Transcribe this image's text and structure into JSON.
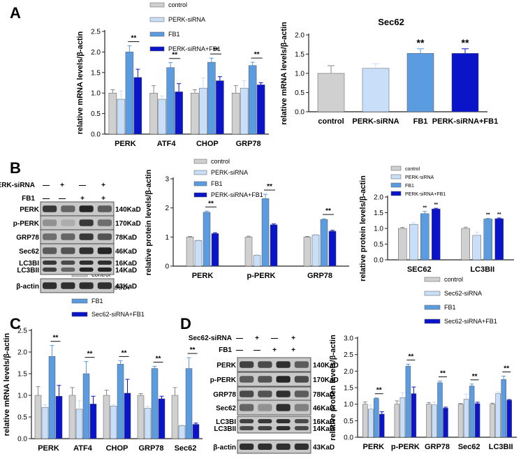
{
  "panel_labels": [
    "A",
    "B",
    "C",
    "D"
  ],
  "colors": {
    "control": "#d0d0d0",
    "siRNA": "#c9def8",
    "FB1": "#5b9be0",
    "combo": "#0a14c8",
    "axis": "#222222",
    "blot_dark": "#1a1a1a",
    "blot_bg": "#c8c8c8"
  },
  "chart_data": [
    {
      "id": "A1",
      "type": "bar",
      "ylabel": "relative mRNA levels/β-actin",
      "ylim": [
        0,
        2.5
      ],
      "ticks": [
        0.0,
        0.5,
        1.0,
        1.5,
        2.0,
        2.5
      ],
      "categories": [
        "PERK",
        "ATF4",
        "CHOP",
        "GRP78"
      ],
      "legend": [
        "control",
        "PERK-siRNA",
        "FB1",
        "PERK-siRNA+FB1"
      ],
      "series": [
        {
          "name": "control",
          "values": [
            1.0,
            1.0,
            1.0,
            1.0
          ],
          "err": [
            0.08,
            0.18,
            0.08,
            0.18
          ]
        },
        {
          "name": "PERK-siRNA",
          "values": [
            0.85,
            0.85,
            1.12,
            1.12
          ],
          "err": [
            0.2,
            0.08,
            0.25,
            0.18
          ]
        },
        {
          "name": "FB1",
          "values": [
            2.0,
            1.62,
            1.75,
            1.67
          ],
          "err": [
            0.15,
            0.12,
            0.1,
            0.08
          ]
        },
        {
          "name": "PERK-siRNA+FB1",
          "values": [
            1.38,
            1.03,
            1.3,
            1.2
          ],
          "err": [
            0.2,
            0.2,
            0.1,
            0.05
          ]
        }
      ],
      "sig": [
        {
          "cat": 0,
          "label": "**"
        },
        {
          "cat": 1,
          "label": "**"
        },
        {
          "cat": 2,
          "label": "**"
        },
        {
          "cat": 3,
          "label": "**"
        }
      ]
    },
    {
      "id": "A2",
      "type": "bar",
      "title": "Sec62",
      "ylabel": "relative mRNA levels/β-actin",
      "ylim": [
        0,
        2.0
      ],
      "ticks": [
        0.0,
        0.5,
        1.0,
        1.5,
        2.0
      ],
      "categories": [
        "control",
        "PERK-siRNA",
        "FB1",
        "PERK-siRNA+FB1"
      ],
      "values": [
        1.0,
        1.13,
        1.52,
        1.52
      ],
      "err": [
        0.2,
        0.12,
        0.12,
        0.12
      ],
      "sig": [
        "",
        "",
        "**",
        "**"
      ]
    },
    {
      "id": "B1",
      "type": "bar",
      "ylabel": "relative protein levels/β-actin",
      "ylim": [
        0,
        3
      ],
      "ticks": [
        0,
        1,
        2,
        3
      ],
      "categories": [
        "PERK",
        "p-PERK",
        "GRP78"
      ],
      "legend": [
        "control",
        "PERK-siRNA",
        "FB1",
        "PERK-siRNA+FB1"
      ],
      "series": [
        {
          "name": "control",
          "values": [
            1.0,
            1.0,
            1.0
          ],
          "err": [
            0.02,
            0.03,
            0.02
          ]
        },
        {
          "name": "PERK-siRNA",
          "values": [
            0.88,
            0.37,
            1.07
          ],
          "err": [
            0.02,
            0.03,
            0.02
          ]
        },
        {
          "name": "FB1",
          "values": [
            1.85,
            2.32,
            1.6
          ],
          "err": [
            0.04,
            0.15,
            0.03
          ]
        },
        {
          "name": "PERK-siRNA+FB1",
          "values": [
            1.12,
            1.42,
            1.2
          ],
          "err": [
            0.03,
            0.03,
            0.03
          ]
        }
      ],
      "sig": [
        {
          "cat": 0,
          "label": "**"
        },
        {
          "cat": 1,
          "label": "**"
        },
        {
          "cat": 2,
          "label": "**"
        }
      ]
    },
    {
      "id": "B2",
      "type": "bar",
      "ylabel": "relative protein levels/β-actin",
      "ylim": [
        0,
        2.0
      ],
      "ticks": [
        0.0,
        0.5,
        1.0,
        1.5,
        2.0
      ],
      "categories": [
        "SEC62",
        "LC3BII"
      ],
      "legend": [
        "control",
        "PERK-siRNA",
        "FB1",
        "PERK-siRNA+FB1"
      ],
      "series": [
        {
          "name": "control",
          "values": [
            1.0,
            1.0
          ],
          "err": [
            0.03,
            0.04
          ]
        },
        {
          "name": "PERK-siRNA",
          "values": [
            1.13,
            0.78
          ],
          "err": [
            0.05,
            0.1
          ]
        },
        {
          "name": "FB1",
          "values": [
            1.47,
            1.3
          ],
          "err": [
            0.07,
            0.02
          ]
        },
        {
          "name": "PERK-siRNA+FB1",
          "values": [
            1.62,
            1.31
          ],
          "err": [
            0.02,
            0.02
          ]
        }
      ],
      "sig_over": [
        {
          "cat": 0,
          "series": 2,
          "label": "**"
        },
        {
          "cat": 0,
          "series": 3,
          "label": "**"
        },
        {
          "cat": 1,
          "series": 2,
          "label": "**"
        },
        {
          "cat": 1,
          "series": 3,
          "label": "**"
        }
      ]
    },
    {
      "id": "C1",
      "type": "bar",
      "ylabel": "relative mRNA levels/β-actin",
      "ylim": [
        0,
        2.5
      ],
      "ticks": [
        0.0,
        0.5,
        1.0,
        1.5,
        2.0,
        2.5
      ],
      "categories": [
        "PERK",
        "ATF4",
        "CHOP",
        "GRP78",
        "Sec62"
      ],
      "legend": [
        "control",
        "Sec62-siRNA",
        "FB1",
        "Sec62-siRNA+FB1"
      ],
      "series": [
        {
          "name": "control",
          "values": [
            1.0,
            1.0,
            1.0,
            1.0,
            1.0
          ],
          "err": [
            0.2,
            0.18,
            0.12,
            0.04,
            0.18
          ]
        },
        {
          "name": "Sec62-siRNA",
          "values": [
            0.72,
            0.68,
            0.75,
            0.7,
            0.3
          ],
          "err": [
            0.06,
            0.2,
            0.03,
            0.05,
            0.02
          ]
        },
        {
          "name": "FB1",
          "values": [
            1.9,
            1.5,
            1.72,
            1.62,
            1.62
          ],
          "err": [
            0.25,
            0.28,
            0.08,
            0.05,
            0.25
          ]
        },
        {
          "name": "Sec62-siRNA+FB1",
          "values": [
            0.98,
            0.8,
            1.05,
            0.92,
            0.33
          ],
          "err": [
            0.25,
            0.18,
            0.32,
            0.06,
            0.03
          ]
        }
      ],
      "sig": [
        {
          "cat": 0,
          "label": "**"
        },
        {
          "cat": 1,
          "label": "**"
        },
        {
          "cat": 2,
          "label": "**"
        },
        {
          "cat": 3,
          "label": "**"
        },
        {
          "cat": 4,
          "label": "**"
        }
      ]
    },
    {
      "id": "D1",
      "type": "bar",
      "ylabel": "relative protien levels/β-actin",
      "ylim": [
        0,
        3.0
      ],
      "ticks": [
        0.0,
        0.5,
        1.0,
        1.5,
        2.0,
        2.5,
        3.0
      ],
      "categories": [
        "PERK",
        "p-PERK",
        "GRP78",
        "Sec62",
        "LC3BII"
      ],
      "legend": [
        "control",
        "Sec62-siRNA",
        "FB1",
        "Sec62-siRNA+FB1"
      ],
      "series": [
        {
          "name": "control",
          "values": [
            1.0,
            1.0,
            1.0,
            1.0,
            1.0
          ],
          "err": [
            0.07,
            0.1,
            0.05,
            0.02,
            0.03
          ]
        },
        {
          "name": "Sec62-siRNA",
          "values": [
            0.85,
            1.2,
            0.98,
            1.15,
            1.32
          ],
          "err": [
            0.12,
            0.15,
            0.08,
            0.15,
            0.05
          ]
        },
        {
          "name": "FB1",
          "values": [
            1.17,
            2.15,
            1.65,
            1.55,
            1.75
          ],
          "err": [
            0.02,
            0.06,
            0.05,
            0.06,
            0.1
          ]
        },
        {
          "name": "Sec62-siRNA+FB1",
          "values": [
            0.7,
            1.32,
            0.88,
            1.02,
            1.12
          ],
          "err": [
            0.07,
            0.2,
            0.03,
            0.04,
            0.02
          ]
        }
      ],
      "sig": [
        {
          "cat": 0,
          "label": "**"
        },
        {
          "cat": 1,
          "label": "**"
        },
        {
          "cat": 2,
          "label": "**"
        },
        {
          "cat": 3,
          "label": "**"
        },
        {
          "cat": 4,
          "label": "**"
        }
      ]
    }
  ],
  "blots": [
    {
      "id": "B",
      "treatments": [
        {
          "label": "PERK-siRNA",
          "marks": [
            "—",
            "+",
            "—",
            "+"
          ]
        },
        {
          "label": "FB1",
          "marks": [
            "—",
            "—",
            "+",
            "+"
          ]
        }
      ],
      "rows": [
        {
          "protein": "PERK",
          "size": "140KaD",
          "int": [
            0.8,
            0.55,
            0.9,
            0.6
          ]
        },
        {
          "protein": "p-PERK",
          "size": "170KaD",
          "int": [
            0.3,
            0.15,
            0.8,
            0.5
          ]
        },
        {
          "protein": "GRP78",
          "size": "78KaD",
          "int": [
            0.5,
            0.55,
            0.8,
            0.65
          ]
        },
        {
          "protein": "Sec62",
          "size": "46KaD",
          "int": [
            0.6,
            0.65,
            0.85,
            0.9
          ]
        },
        {
          "protein": "LC3BI",
          "size": "16KaD",
          "int": [
            0.8,
            0.7,
            0.85,
            0.85
          ]
        },
        {
          "protein": "LC3BII",
          "size": "14KaD",
          "int": [
            0.75,
            0.55,
            0.9,
            0.9
          ]
        },
        {
          "protein": "β-actin",
          "size": "43KaD",
          "int": [
            0.85,
            0.85,
            0.85,
            0.85
          ]
        }
      ]
    },
    {
      "id": "D",
      "treatments": [
        {
          "label": "Sec62-siRNA",
          "marks": [
            "—",
            "+",
            "—",
            "+"
          ]
        },
        {
          "label": "FB1",
          "marks": [
            "—",
            "—",
            "+",
            "+"
          ]
        }
      ],
      "rows": [
        {
          "protein": "PERK",
          "size": "140KaD",
          "int": [
            0.75,
            0.7,
            0.85,
            0.6
          ]
        },
        {
          "protein": "p-PERK",
          "size": "170KaD",
          "int": [
            0.6,
            0.65,
            0.9,
            0.7
          ]
        },
        {
          "protein": "GRP78",
          "size": "78KaD",
          "int": [
            0.7,
            0.65,
            0.85,
            0.6
          ]
        },
        {
          "protein": "Sec62",
          "size": "46KaD",
          "int": [
            0.55,
            0.3,
            0.85,
            0.4
          ]
        },
        {
          "protein": "LC3BI",
          "size": "16KaD",
          "int": [
            0.75,
            0.8,
            0.85,
            0.7
          ]
        },
        {
          "protein": "LC3BII",
          "size": "14KaD",
          "int": [
            0.7,
            0.75,
            0.85,
            0.7
          ]
        },
        {
          "protein": "β-actin",
          "size": "43KaD",
          "int": [
            0.85,
            0.85,
            0.85,
            0.85
          ]
        }
      ]
    }
  ]
}
